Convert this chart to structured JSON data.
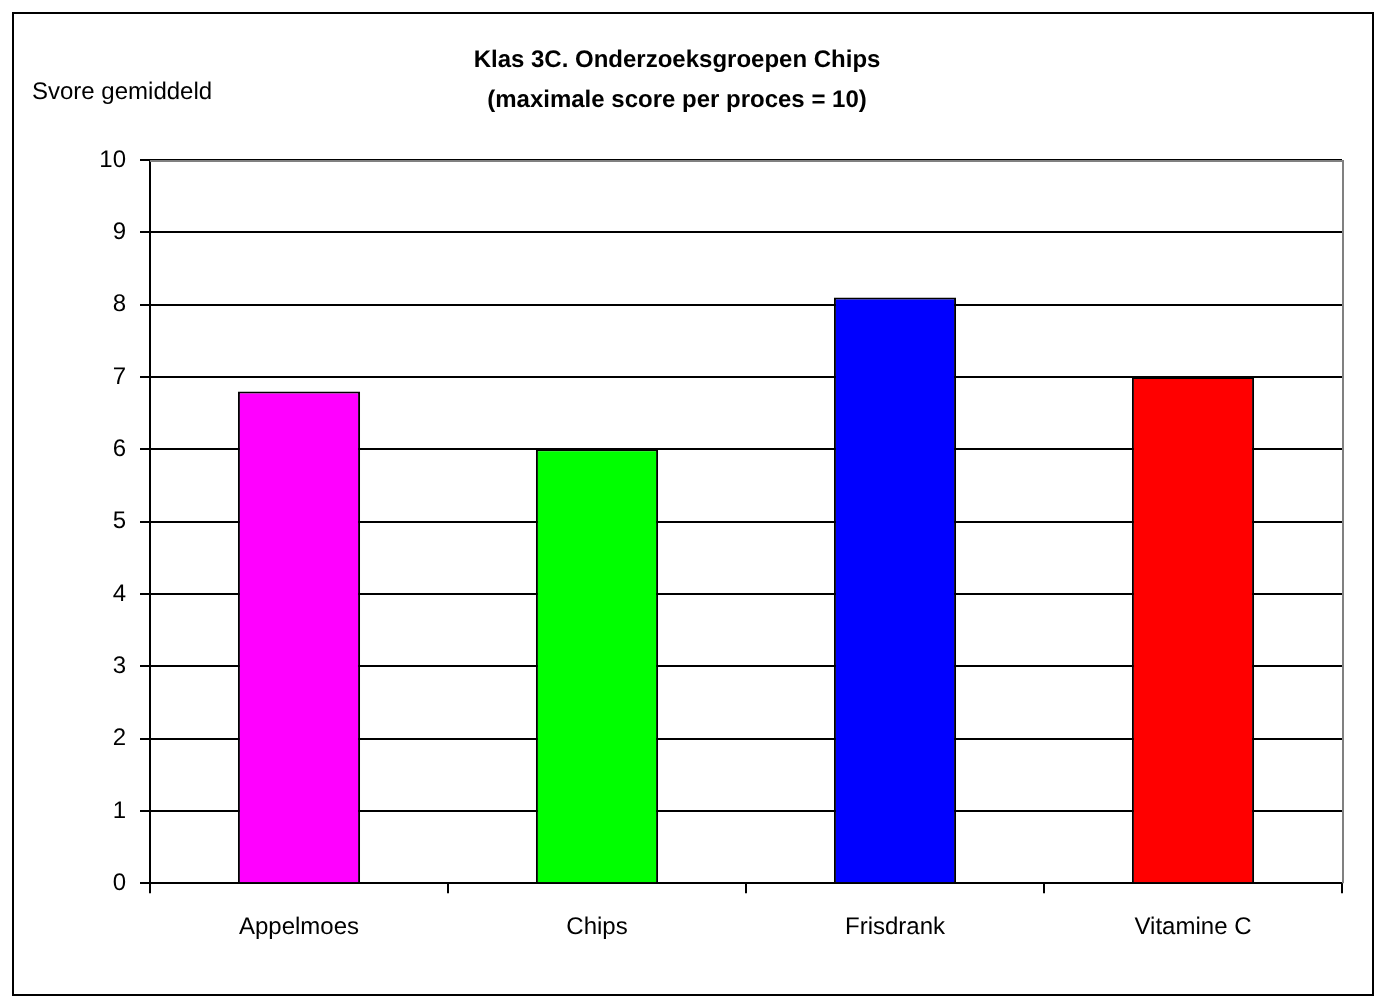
{
  "chart_data": {
    "type": "bar",
    "title": "Klas 3C. Onderzoeksgroepen Chips",
    "subtitle": "(maximale score per proces = 10)",
    "ylabel": "Svore gemiddeld",
    "categories": [
      "Appelmoes",
      "Chips",
      "Frisdrank",
      "Vitamine C"
    ],
    "values": [
      6.8,
      6.0,
      8.1,
      7.0
    ],
    "colors": [
      "#ff00ff",
      "#00ff00",
      "#0000ff",
      "#ff0000"
    ],
    "ylim": [
      0,
      10
    ],
    "yticks": [
      0,
      1,
      2,
      3,
      4,
      5,
      6,
      7,
      8,
      9,
      10
    ],
    "grid": "y"
  }
}
